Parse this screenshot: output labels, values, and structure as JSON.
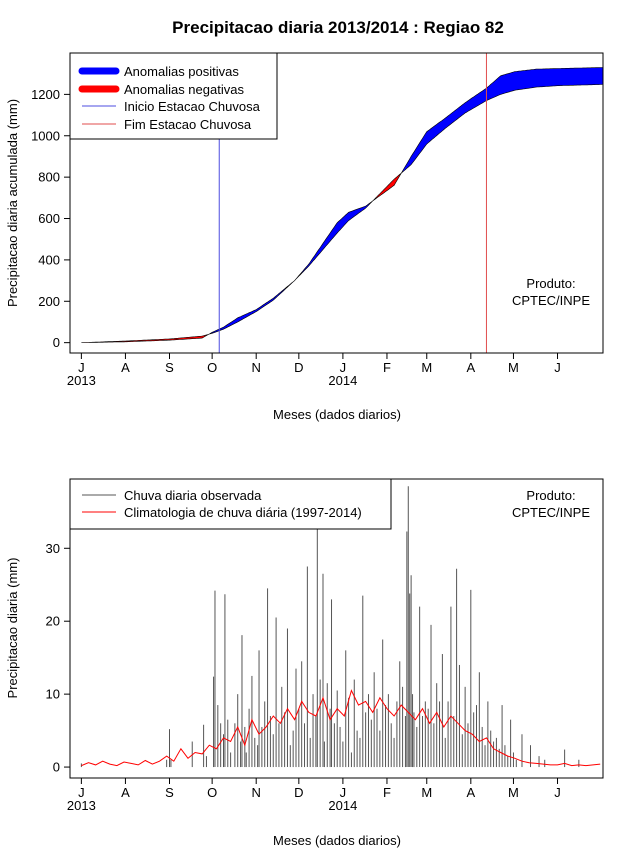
{
  "chart_data": [
    {
      "type": "area",
      "title": "Precipitacao diaria 2013/2014 : Regiao 82",
      "xlabel": "Meses (dados diarios)",
      "ylabel": "Precipitacao diaria acumulada (mm)",
      "xlim": [
        -8,
        367
      ],
      "ylim": [
        -50,
        1400
      ],
      "yticks": [
        0,
        200,
        400,
        600,
        800,
        1000,
        1200
      ],
      "month_ticks": [
        {
          "label": "J",
          "day": 0
        },
        {
          "label": "A",
          "day": 31
        },
        {
          "label": "S",
          "day": 62
        },
        {
          "label": "O",
          "day": 92
        },
        {
          "label": "N",
          "day": 123
        },
        {
          "label": "D",
          "day": 153
        },
        {
          "label": "J",
          "day": 184
        },
        {
          "label": "F",
          "day": 215
        },
        {
          "label": "M",
          "day": 243
        },
        {
          "label": "A",
          "day": 274
        },
        {
          "label": "M",
          "day": 304
        },
        {
          "label": "J",
          "day": 335
        }
      ],
      "year_labels": [
        {
          "label": "2013",
          "day": 0
        },
        {
          "label": "2014",
          "day": 184
        }
      ],
      "legend": [
        {
          "label": "Anomalias positivas",
          "color": "#0000FF"
        },
        {
          "label": "Anomalias negativas",
          "color": "#FF0000"
        },
        {
          "label": "Inicio Estacao Chuvosa",
          "color": "#4D4DE0"
        },
        {
          "label": "Fim Estacao Chuvosa",
          "color": "#E04D4D"
        }
      ],
      "annotation": [
        "Produto:",
        "CPTEC/INPE"
      ],
      "rainy_season_start_day": 97,
      "rainy_season_end_day": 285,
      "observed_accumulated": {
        "days": [
          0,
          31,
          62,
          85,
          92,
          100,
          110,
          123,
          135,
          150,
          160,
          170,
          180,
          188,
          200,
          210,
          220,
          232,
          243,
          255,
          270,
          285,
          295,
          305,
          320,
          335,
          367
        ],
        "values": [
          0,
          4,
          12,
          22,
          50,
          75,
          120,
          160,
          215,
          300,
          380,
          480,
          580,
          630,
          660,
          710,
          760,
          900,
          1020,
          1080,
          1160,
          1230,
          1290,
          1310,
          1322,
          1325,
          1330
        ]
      },
      "climatology_accumulated": {
        "days": [
          0,
          31,
          62,
          85,
          92,
          100,
          110,
          123,
          135,
          150,
          160,
          170,
          180,
          188,
          200,
          210,
          220,
          232,
          243,
          255,
          270,
          285,
          295,
          305,
          320,
          335,
          367
        ],
        "values": [
          0,
          8,
          18,
          32,
          45,
          65,
          100,
          150,
          205,
          300,
          370,
          450,
          530,
          590,
          650,
          720,
          790,
          860,
          960,
          1030,
          1110,
          1170,
          1200,
          1220,
          1235,
          1242,
          1248
        ]
      }
    },
    {
      "type": "bar",
      "xlabel": "Meses (dados diarios)",
      "ylabel": "Precipitacao diaria (mm)",
      "xlim": [
        -8,
        367
      ],
      "ylim": [
        -1.5,
        39.5
      ],
      "yticks": [
        0,
        10,
        20,
        30
      ],
      "month_ticks": [
        {
          "label": "J",
          "day": 0
        },
        {
          "label": "A",
          "day": 31
        },
        {
          "label": "S",
          "day": 62
        },
        {
          "label": "O",
          "day": 92
        },
        {
          "label": "N",
          "day": 123
        },
        {
          "label": "D",
          "day": 153
        },
        {
          "label": "J",
          "day": 184
        },
        {
          "label": "F",
          "day": 215
        },
        {
          "label": "M",
          "day": 243
        },
        {
          "label": "A",
          "day": 274
        },
        {
          "label": "M",
          "day": 304
        },
        {
          "label": "J",
          "day": 335
        }
      ],
      "year_labels": [
        {
          "label": "2013",
          "day": 0
        },
        {
          "label": "2014",
          "day": 184
        }
      ],
      "legend": [
        {
          "label": "Chuva diaria observada",
          "color": "#555555"
        },
        {
          "label": "Climatologia de chuva diária (1997-2014)",
          "color": "#FF0000"
        }
      ],
      "annotation": [
        "Produto:",
        "CPTEC/INPE"
      ],
      "observed_daily": {
        "days": [
          0,
          60,
          62,
          63,
          78,
          86,
          88,
          93,
          94,
          96,
          98,
          100,
          101,
          103,
          105,
          108,
          110,
          112,
          113,
          115,
          116,
          118,
          120,
          122,
          124,
          125,
          127,
          129,
          131,
          133,
          135,
          137,
          139,
          141,
          143,
          145,
          147,
          149,
          151,
          153,
          155,
          157,
          159,
          161,
          163,
          165,
          166,
          168,
          170,
          171,
          173,
          175,
          176,
          178,
          180,
          182,
          184,
          186,
          188,
          190,
          192,
          194,
          196,
          198,
          200,
          202,
          204,
          206,
          208,
          210,
          212,
          214,
          216,
          218,
          220,
          222,
          224,
          226,
          228,
          229,
          230,
          231,
          232,
          233,
          234,
          236,
          238,
          240,
          242,
          244,
          246,
          248,
          250,
          252,
          254,
          256,
          258,
          260,
          262,
          264,
          266,
          268,
          270,
          272,
          274,
          276,
          278,
          280,
          282,
          284,
          286,
          288,
          290,
          292,
          294,
          296,
          298,
          300,
          302,
          304,
          306,
          310,
          316,
          322,
          326,
          340,
          350
        ],
        "values": [
          0.5,
          1.0,
          5.2,
          1.0,
          3.5,
          5.8,
          1.5,
          12.4,
          24.2,
          8.5,
          6.0,
          4.5,
          23.7,
          6.5,
          2.0,
          6.0,
          10.0,
          3.5,
          18.1,
          5.5,
          2.0,
          8.0,
          12.5,
          4.0,
          3.0,
          16.0,
          5.5,
          9.0,
          24.5,
          7.0,
          4.5,
          20.5,
          6.0,
          11.0,
          7.5,
          19.0,
          3.0,
          5.0,
          13.5,
          8.0,
          14.5,
          6.0,
          27.5,
          4.0,
          10.0,
          7.0,
          33.0,
          12.0,
          26.5,
          3.5,
          11.5,
          8.0,
          23.0,
          6.0,
          10.5,
          5.5,
          3.5,
          16.0,
          9.5,
          2.0,
          12.0,
          5.0,
          4.0,
          23.5,
          7.5,
          10.0,
          6.5,
          13.0,
          8.0,
          5.0,
          17.5,
          8.5,
          10.0,
          6.0,
          4.0,
          9.0,
          14.5,
          11.0,
          7.0,
          32.3,
          38.5,
          23.8,
          26.3,
          10.0,
          7.5,
          5.5,
          22.0,
          7.0,
          9.0,
          8.0,
          19.5,
          6.0,
          11.5,
          9.0,
          15.5,
          4.0,
          9.0,
          22.0,
          7.0,
          27.2,
          14.0,
          4.5,
          11.0,
          6.0,
          24.3,
          7.5,
          8.5,
          13.0,
          5.5,
          3.0,
          9.0,
          5.0,
          3.5,
          4.0,
          2.5,
          8.5,
          3.0,
          1.5,
          6.5,
          2.0,
          1.0,
          4.5,
          3.0,
          1.5,
          1.0,
          2.4,
          1.0
        ]
      },
      "climatology_daily": {
        "days": [
          0,
          5,
          10,
          15,
          20,
          25,
          30,
          35,
          40,
          45,
          50,
          55,
          60,
          65,
          70,
          75,
          80,
          85,
          90,
          95,
          100,
          105,
          110,
          115,
          120,
          125,
          130,
          135,
          140,
          145,
          150,
          155,
          160,
          165,
          170,
          175,
          180,
          185,
          190,
          195,
          200,
          205,
          210,
          215,
          220,
          225,
          230,
          235,
          240,
          245,
          250,
          255,
          260,
          265,
          270,
          275,
          280,
          285,
          290,
          295,
          300,
          305,
          310,
          315,
          320,
          325,
          330,
          335,
          340,
          345,
          350,
          355,
          360,
          365
        ],
        "values": [
          0.2,
          0.6,
          0.3,
          0.8,
          0.4,
          0.2,
          0.7,
          0.5,
          0.3,
          0.9,
          0.4,
          0.8,
          1.5,
          0.8,
          2.5,
          1.2,
          2.0,
          1.8,
          3.0,
          2.5,
          4.0,
          3.5,
          5.5,
          3.0,
          6.5,
          4.5,
          5.5,
          7.0,
          6.0,
          8.0,
          6.5,
          9.0,
          7.5,
          7.0,
          9.5,
          6.5,
          8.0,
          7.0,
          10.5,
          8.5,
          9.0,
          7.5,
          9.5,
          8.0,
          7.0,
          8.5,
          7.5,
          6.5,
          8.0,
          6.0,
          7.5,
          5.5,
          7.0,
          6.0,
          5.0,
          4.5,
          3.5,
          4.0,
          2.5,
          2.0,
          1.5,
          1.2,
          0.8,
          0.6,
          0.5,
          0.4,
          0.3,
          0.3,
          0.5,
          0.2,
          0.3,
          0.2,
          0.3,
          0.4
        ]
      }
    }
  ]
}
